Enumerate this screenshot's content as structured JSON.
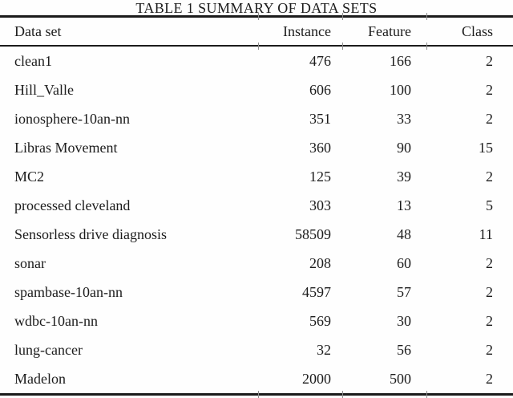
{
  "table": {
    "title": "TABLE 1 SUMMARY OF DATA SETS",
    "columns": [
      "Data set",
      "Instance",
      "Feature",
      "Class"
    ],
    "rows": [
      {
        "dataset": "clean1",
        "instance": "476",
        "feature": "166",
        "class": "2"
      },
      {
        "dataset": "Hill_Valle",
        "instance": "606",
        "feature": "100",
        "class": "2"
      },
      {
        "dataset": "ionosphere-10an-nn",
        "instance": "351",
        "feature": "33",
        "class": "2"
      },
      {
        "dataset": "Libras Movement",
        "instance": "360",
        "feature": "90",
        "class": "15"
      },
      {
        "dataset": "MC2",
        "instance": "125",
        "feature": "39",
        "class": "2"
      },
      {
        "dataset": "processed cleveland",
        "instance": "303",
        "feature": "13",
        "class": "5"
      },
      {
        "dataset": "Sensorless drive diagnosis",
        "instance": "58509",
        "feature": "48",
        "class": "11"
      },
      {
        "dataset": "sonar",
        "instance": "208",
        "feature": "60",
        "class": "2"
      },
      {
        "dataset": "spambase-10an-nn",
        "instance": "4597",
        "feature": "57",
        "class": "2"
      },
      {
        "dataset": "wdbc-10an-nn",
        "instance": "569",
        "feature": "30",
        "class": "2"
      },
      {
        "dataset": "lung-cancer",
        "instance": "32",
        "feature": "56",
        "class": "2"
      },
      {
        "dataset": "Madelon",
        "instance": "2000",
        "feature": "500",
        "class": "2"
      }
    ],
    "colors": {
      "text": "#1c1c1c",
      "rule": "#1b1b1b",
      "divider_tick": "#8f8f8f",
      "background": "#fefefe"
    }
  }
}
